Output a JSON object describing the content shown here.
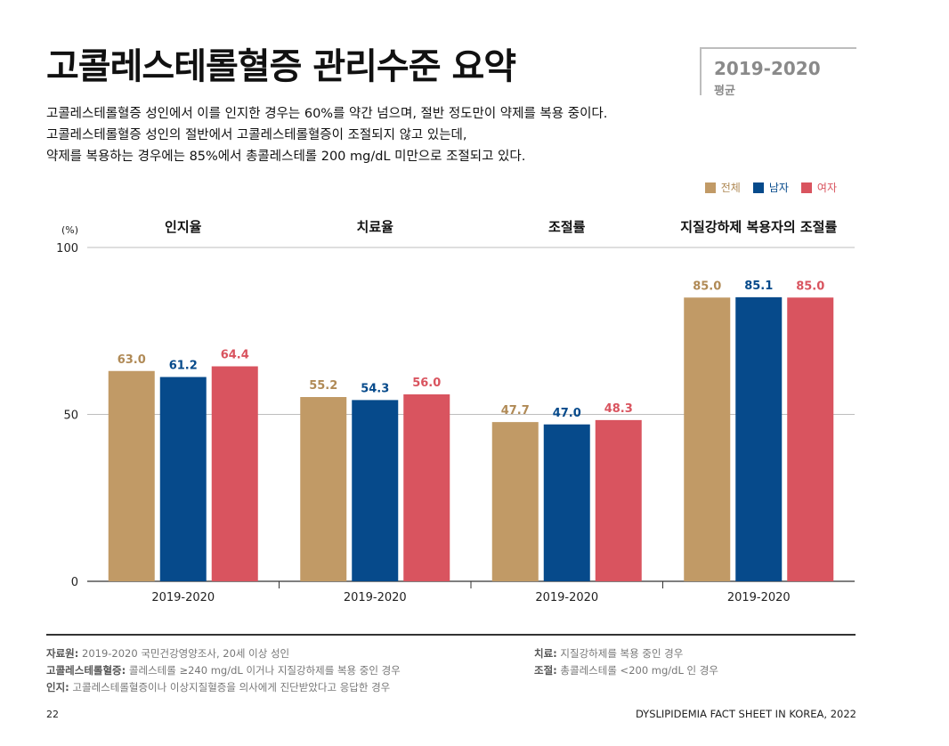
{
  "header": {
    "title": "고콜레스테롤혈증 관리수준 요약",
    "period_year": "2019-2020",
    "period_label": "평균"
  },
  "description": [
    "고콜레스테롤혈증 성인에서 이를 인지한 경우는 60%를 약간 넘으며, 절반 정도만이 약제를 복용 중이다.",
    "고콜레스테롤혈증 성인의 절반에서 고콜레스테롤혈증이 조절되지 않고 있는데,",
    "약제를 복용하는 경우에는 85%에서 총콜레스테롤 200 mg/dL 미만으로 조절되고 있다."
  ],
  "colors": {
    "total": "#c19a66",
    "male": "#064a8b",
    "female": "#d9545f"
  },
  "chart_data": {
    "type": "bar",
    "ylabel": "(%)",
    "ylim": [
      0,
      100
    ],
    "yticks": [
      0,
      50,
      100
    ],
    "grid": true,
    "legend_position": "top-right",
    "panels": [
      "인지율",
      "치료율",
      "조절률",
      "지질강하제 복용자의 조절률"
    ],
    "categories": [
      "2019-2020",
      "2019-2020",
      "2019-2020",
      "2019-2020"
    ],
    "series": [
      {
        "name": "전체",
        "values": [
          63.0,
          55.2,
          47.7,
          85.0
        ],
        "labels": [
          "63.0",
          "55.2",
          "47.7",
          "85.0"
        ]
      },
      {
        "name": "남자",
        "values": [
          61.2,
          54.3,
          47.0,
          85.1
        ],
        "labels": [
          "61.2",
          "54.3",
          "47.0",
          "85.1"
        ]
      },
      {
        "name": "여자",
        "values": [
          64.4,
          56.0,
          48.3,
          85.0
        ],
        "labels": [
          "64.4",
          "56.0",
          "48.3",
          "85.0"
        ]
      }
    ]
  },
  "notes": {
    "source_label": "자료원:",
    "source_text": " 2019-2020 국민건강영양조사, 20세 이상 성인",
    "hyper_label": "고콜레스테롤혈증:",
    "hyper_text": " 콜레스테롤 ≥240 mg/dL 이거나 지질강하제를 복용 중인 경우",
    "aware_label": "인지:",
    "aware_text": " 고콜레스테롤혈증이나 이상지질혈증을 의사에게 진단받았다고 응답한 경우",
    "treat_label": "치료:",
    "treat_text": " 지질강하제를 복용 중인 경우",
    "control_label": "조절:",
    "control_text": " 총콜레스테롤 <200 mg/dL 인 경우"
  },
  "footer": {
    "page_number": "22",
    "publication": "DYSLIPIDEMIA FACT SHEET IN KOREA, 2022"
  }
}
